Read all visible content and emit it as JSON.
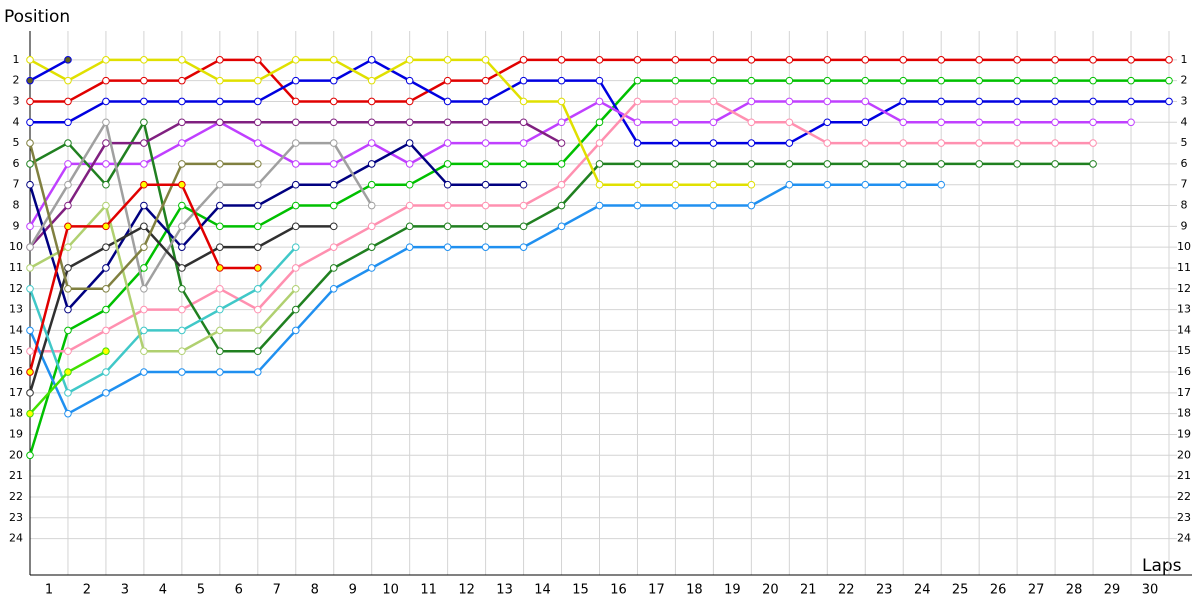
{
  "chart_data": {
    "type": "line",
    "y_title": "Position",
    "x_title": "Laps",
    "x": [
      0,
      1,
      2,
      3,
      4,
      5,
      6,
      7,
      8,
      9,
      10,
      11,
      12,
      13,
      14,
      15,
      16,
      17,
      18,
      19,
      20,
      21,
      22,
      23,
      24,
      25,
      26,
      27,
      28,
      29,
      30
    ],
    "xlim": [
      0,
      30
    ],
    "xticks": [
      1,
      2,
      3,
      4,
      5,
      6,
      7,
      8,
      9,
      10,
      11,
      12,
      13,
      14,
      15,
      16,
      17,
      18,
      19,
      20,
      21,
      22,
      23,
      24,
      25,
      26,
      27,
      28,
      29,
      30
    ],
    "ylim": [
      0,
      25.75
    ],
    "yticks": [
      1,
      2,
      3,
      4,
      5,
      6,
      7,
      8,
      9,
      10,
      11,
      12,
      13,
      14,
      15,
      16,
      17,
      18,
      19,
      20,
      21,
      22,
      23,
      24
    ],
    "y_inverted": true,
    "grid": true,
    "series": [
      {
        "color": "#e00000",
        "values": [
          3,
          3,
          2,
          2,
          2,
          1,
          1,
          3,
          3,
          3,
          3,
          2,
          2,
          1,
          1,
          1,
          1,
          1,
          1,
          1,
          1,
          1,
          1,
          1,
          1,
          1,
          1,
          1,
          1,
          1,
          1
        ]
      },
      {
        "color": "#00c000",
        "values": [
          20,
          14,
          13,
          11,
          8,
          9,
          9,
          8,
          8,
          7,
          7,
          6,
          6,
          6,
          6,
          4,
          2,
          2,
          2,
          2,
          2,
          2,
          2,
          2,
          2,
          2,
          2,
          2,
          2,
          2,
          2
        ]
      },
      {
        "color": "#0000e0",
        "values": [
          4,
          4,
          3,
          3,
          3,
          3,
          3,
          2,
          2,
          1,
          2,
          3,
          3,
          2,
          2,
          2,
          5,
          5,
          5,
          5,
          5,
          4,
          4,
          3,
          3,
          3,
          3,
          3,
          3,
          3,
          3
        ]
      },
      {
        "color": "#c040ff",
        "values": [
          9,
          6,
          6,
          6,
          5,
          4,
          5,
          6,
          6,
          5,
          6,
          5,
          5,
          5,
          4,
          3,
          4,
          4,
          4,
          3,
          3,
          3,
          3,
          4,
          4,
          4,
          4,
          4,
          4,
          4,
          null
        ]
      },
      {
        "color": "#ff90b0",
        "values": [
          15,
          15,
          14,
          13,
          13,
          12,
          13,
          11,
          10,
          9,
          8,
          8,
          8,
          8,
          7,
          5,
          3,
          3,
          3,
          4,
          4,
          5,
          5,
          5,
          5,
          5,
          5,
          5,
          5,
          null,
          null
        ]
      },
      {
        "color": "#208020",
        "values": [
          6,
          5,
          7,
          4,
          12,
          15,
          15,
          13,
          11,
          10,
          9,
          9,
          9,
          9,
          8,
          6,
          6,
          6,
          6,
          6,
          6,
          6,
          6,
          6,
          6,
          6,
          6,
          6,
          6,
          null,
          null
        ]
      },
      {
        "color": "#2090f0",
        "values": [
          14,
          18,
          17,
          16,
          16,
          16,
          16,
          14,
          12,
          11,
          10,
          10,
          10,
          10,
          9,
          8,
          8,
          8,
          8,
          8,
          7,
          7,
          7,
          7,
          7,
          null,
          null,
          null,
          null,
          null,
          null
        ]
      },
      {
        "color": "#e0e000",
        "values": [
          1,
          2,
          1,
          1,
          1,
          2,
          2,
          1,
          1,
          2,
          1,
          1,
          1,
          3,
          3,
          7,
          7,
          7,
          7,
          7,
          null,
          null,
          null,
          null,
          null,
          null,
          null,
          null,
          null,
          null,
          null
        ]
      },
      {
        "color": "#802080",
        "values": [
          10,
          8,
          5,
          5,
          4,
          4,
          4,
          4,
          4,
          4,
          4,
          4,
          4,
          4,
          5,
          null,
          null,
          null,
          null,
          null,
          null,
          null,
          null,
          null,
          null,
          null,
          null,
          null,
          null,
          null,
          null
        ]
      },
      {
        "color": "#000080",
        "values": [
          7,
          13,
          11,
          8,
          10,
          8,
          8,
          7,
          7,
          6,
          5,
          7,
          7,
          7,
          null,
          null,
          null,
          null,
          null,
          null,
          null,
          null,
          null,
          null,
          null,
          null,
          null,
          null,
          null,
          null,
          null
        ]
      },
      {
        "color": "#a0a0a0",
        "values": [
          10,
          7,
          4,
          12,
          9,
          7,
          7,
          5,
          5,
          8,
          null,
          null,
          null,
          null,
          null,
          null,
          null,
          null,
          null,
          null,
          null,
          null,
          null,
          null,
          null,
          null,
          null,
          null,
          null,
          null,
          null
        ]
      },
      {
        "color": "#303030",
        "values": [
          17,
          11,
          10,
          9,
          11,
          10,
          10,
          9,
          9,
          null,
          null,
          null,
          null,
          null,
          null,
          null,
          null,
          null,
          null,
          null,
          null,
          null,
          null,
          null,
          null,
          null,
          null,
          null,
          null,
          null,
          null
        ]
      },
      {
        "color": "#40c8c8",
        "values": [
          12,
          17,
          16,
          14,
          14,
          13,
          12,
          10,
          null,
          null,
          null,
          null,
          null,
          null,
          null,
          null,
          null,
          null,
          null,
          null,
          null,
          null,
          null,
          null,
          null,
          null,
          null,
          null,
          null,
          null,
          null
        ]
      },
      {
        "color": "#b0d070",
        "values": [
          11,
          10,
          8,
          15,
          15,
          14,
          14,
          12,
          null,
          null,
          null,
          null,
          null,
          null,
          null,
          null,
          null,
          null,
          null,
          null,
          null,
          null,
          null,
          null,
          null,
          null,
          null,
          null,
          null,
          null,
          null
        ]
      },
      {
        "color": "#808040",
        "values": [
          5,
          12,
          12,
          10,
          6,
          6,
          6,
          null,
          null,
          null,
          null,
          null,
          null,
          null,
          null,
          null,
          null,
          null,
          null,
          null,
          null,
          null,
          null,
          null,
          null,
          null,
          null,
          null,
          null,
          null,
          null
        ]
      },
      {
        "color": "#e00000",
        "marker_fill": "#ffff00",
        "values": [
          16,
          9,
          9,
          7,
          7,
          11,
          11,
          null,
          null,
          null,
          null,
          null,
          null,
          null,
          null,
          null,
          null,
          null,
          null,
          null,
          null,
          null,
          null,
          null,
          null,
          null,
          null,
          null,
          null,
          null,
          null
        ]
      },
      {
        "color": "#40e000",
        "marker_fill": "#ffff00",
        "values": [
          18,
          16,
          15,
          null,
          null,
          null,
          null,
          null,
          null,
          null,
          null,
          null,
          null,
          null,
          null,
          null,
          null,
          null,
          null,
          null,
          null,
          null,
          null,
          null,
          null,
          null,
          null,
          null,
          null,
          null,
          null
        ]
      },
      {
        "color": "#0000e0",
        "marker_fill": "#606020",
        "values": [
          2,
          1,
          null,
          null,
          null,
          null,
          null,
          null,
          null,
          null,
          null,
          null,
          null,
          null,
          null,
          null,
          null,
          null,
          null,
          null,
          null,
          null,
          null,
          null,
          null,
          null,
          null,
          null,
          null,
          null,
          null
        ]
      }
    ]
  }
}
